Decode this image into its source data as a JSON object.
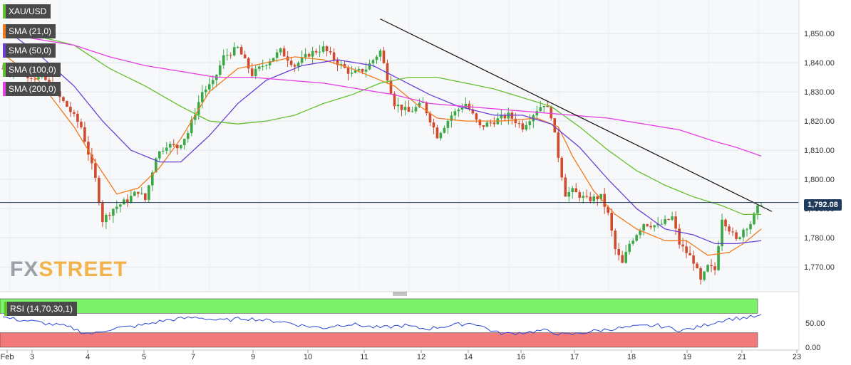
{
  "symbol": "XAU/USD",
  "current_price_label": "1,792.08",
  "watermark": {
    "part1": "FX",
    "part2": "STREET"
  },
  "legend": [
    {
      "label": "SMA (21,0)",
      "color": "#f07a1d"
    },
    {
      "label": "SMA (50,0)",
      "color": "#6b3fd6"
    },
    {
      "label": "SMA (100,0)",
      "color": "#63c02f"
    },
    {
      "label": "SMA (200,0)",
      "color": "#e63fe6"
    }
  ],
  "rsi_label": "RSI (14,70,30,1)",
  "chart_data": {
    "type": "candlestick",
    "price_axis": {
      "ticks": [
        1850,
        1840,
        1830,
        1820,
        1810,
        1800,
        1790,
        1780,
        1770
      ],
      "tick_labels": [
        "1,850.00",
        "1,840.00",
        "1,830.00",
        "1,820.00",
        "1,810.00",
        "1,800.00",
        "1,790.00",
        "1,780.00",
        "1,770.00"
      ],
      "ylim": [
        1762,
        1861
      ]
    },
    "rsi_axis": {
      "ticks": [
        50,
        0
      ],
      "tick_labels": [
        "50.00",
        "0.00"
      ],
      "overbought": 70,
      "oversold": 30
    },
    "x_labels": [
      "Feb",
      "3",
      "4",
      "5",
      "7",
      "9",
      "10",
      "11",
      "12",
      "14",
      "16",
      "17",
      "18",
      "19",
      "21",
      "23"
    ],
    "price_path": [
      [
        0,
        1838
      ],
      [
        6,
        1836
      ],
      [
        12,
        1834
      ],
      [
        18,
        1825
      ],
      [
        22,
        1818
      ],
      [
        26,
        1800
      ],
      [
        28,
        1786
      ],
      [
        31,
        1790
      ],
      [
        35,
        1793
      ],
      [
        38,
        1796
      ],
      [
        40,
        1793
      ],
      [
        43,
        1808
      ],
      [
        46,
        1812
      ],
      [
        49,
        1811
      ],
      [
        52,
        1816
      ],
      [
        56,
        1830
      ],
      [
        59,
        1833
      ],
      [
        62,
        1842
      ],
      [
        66,
        1845
      ],
      [
        70,
        1836
      ],
      [
        74,
        1840
      ],
      [
        78,
        1844
      ],
      [
        82,
        1839
      ],
      [
        86,
        1843
      ],
      [
        90,
        1845
      ],
      [
        94,
        1840
      ],
      [
        98,
        1836
      ],
      [
        102,
        1838
      ],
      [
        106,
        1844
      ],
      [
        110,
        1826
      ],
      [
        114,
        1823
      ],
      [
        118,
        1826
      ],
      [
        122,
        1815
      ],
      [
        126,
        1822
      ],
      [
        130,
        1826
      ],
      [
        134,
        1818
      ],
      [
        138,
        1820
      ],
      [
        142,
        1822
      ],
      [
        146,
        1818
      ],
      [
        150,
        1824
      ],
      [
        152,
        1826
      ],
      [
        154,
        1822
      ],
      [
        156,
        1808
      ],
      [
        158,
        1795
      ],
      [
        160,
        1796
      ],
      [
        164,
        1793
      ],
      [
        168,
        1794
      ],
      [
        170,
        1788
      ],
      [
        172,
        1776
      ],
      [
        174,
        1771
      ],
      [
        176,
        1778
      ],
      [
        180,
        1785
      ],
      [
        184,
        1784
      ],
      [
        188,
        1787
      ],
      [
        190,
        1778
      ],
      [
        192,
        1775
      ],
      [
        194,
        1772
      ],
      [
        196,
        1765
      ],
      [
        198,
        1770
      ],
      [
        200,
        1769
      ],
      [
        202,
        1787
      ],
      [
        204,
        1783
      ],
      [
        206,
        1779
      ],
      [
        208,
        1783
      ],
      [
        210,
        1785
      ],
      [
        212,
        1790
      ],
      [
        213,
        1792.08
      ]
    ],
    "series": [
      {
        "name": "SMA (21,0)",
        "color": "#f07a1d",
        "points": [
          [
            0,
            1843
          ],
          [
            10,
            1834
          ],
          [
            20,
            1818
          ],
          [
            26,
            1806
          ],
          [
            32,
            1795
          ],
          [
            38,
            1797
          ],
          [
            44,
            1804
          ],
          [
            50,
            1814
          ],
          [
            58,
            1830
          ],
          [
            66,
            1838
          ],
          [
            74,
            1840
          ],
          [
            82,
            1842
          ],
          [
            90,
            1841
          ],
          [
            98,
            1838
          ],
          [
            104,
            1835
          ],
          [
            110,
            1832
          ],
          [
            116,
            1826
          ],
          [
            122,
            1821
          ],
          [
            130,
            1820
          ],
          [
            140,
            1820
          ],
          [
            150,
            1821
          ],
          [
            156,
            1818
          ],
          [
            160,
            1808
          ],
          [
            166,
            1796
          ],
          [
            172,
            1788
          ],
          [
            178,
            1783
          ],
          [
            186,
            1779
          ],
          [
            192,
            1779
          ],
          [
            198,
            1774
          ],
          [
            204,
            1775
          ],
          [
            208,
            1778
          ],
          [
            213,
            1783
          ]
        ]
      },
      {
        "name": "SMA (50,0)",
        "color": "#6b3fd6",
        "points": [
          [
            0,
            1852
          ],
          [
            10,
            1843
          ],
          [
            20,
            1832
          ],
          [
            28,
            1820
          ],
          [
            36,
            1810
          ],
          [
            44,
            1806
          ],
          [
            50,
            1806
          ],
          [
            58,
            1815
          ],
          [
            66,
            1826
          ],
          [
            74,
            1834
          ],
          [
            84,
            1839
          ],
          [
            94,
            1841
          ],
          [
            104,
            1839
          ],
          [
            112,
            1834
          ],
          [
            120,
            1829
          ],
          [
            128,
            1825
          ],
          [
            138,
            1822
          ],
          [
            146,
            1822
          ],
          [
            154,
            1819
          ],
          [
            162,
            1811
          ],
          [
            170,
            1800
          ],
          [
            178,
            1790
          ],
          [
            186,
            1783
          ],
          [
            194,
            1781
          ],
          [
            200,
            1778
          ],
          [
            206,
            1778
          ],
          [
            213,
            1779
          ]
        ]
      },
      {
        "name": "SMA (100,0)",
        "color": "#63c02f",
        "points": [
          [
            0,
            1852
          ],
          [
            10,
            1849
          ],
          [
            20,
            1846
          ],
          [
            30,
            1838
          ],
          [
            40,
            1832
          ],
          [
            50,
            1825
          ],
          [
            58,
            1820
          ],
          [
            66,
            1819
          ],
          [
            74,
            1820
          ],
          [
            82,
            1822
          ],
          [
            90,
            1826
          ],
          [
            98,
            1829
          ],
          [
            106,
            1833
          ],
          [
            114,
            1835
          ],
          [
            122,
            1835
          ],
          [
            130,
            1833
          ],
          [
            138,
            1831
          ],
          [
            146,
            1828
          ],
          [
            154,
            1825
          ],
          [
            162,
            1818
          ],
          [
            170,
            1810
          ],
          [
            178,
            1803
          ],
          [
            186,
            1798
          ],
          [
            194,
            1794
          ],
          [
            202,
            1791
          ],
          [
            208,
            1788
          ],
          [
            213,
            1788
          ]
        ]
      },
      {
        "name": "SMA (200,0)",
        "color": "#e63fe6",
        "points": [
          [
            0,
            1850
          ],
          [
            10,
            1848
          ],
          [
            20,
            1846
          ],
          [
            30,
            1842
          ],
          [
            40,
            1839
          ],
          [
            50,
            1837
          ],
          [
            60,
            1835
          ],
          [
            70,
            1835
          ],
          [
            80,
            1834
          ],
          [
            90,
            1833
          ],
          [
            100,
            1831
          ],
          [
            110,
            1829
          ],
          [
            120,
            1826
          ],
          [
            130,
            1825
          ],
          [
            140,
            1824
          ],
          [
            150,
            1823
          ],
          [
            160,
            1822
          ],
          [
            170,
            1821
          ],
          [
            180,
            1819
          ],
          [
            190,
            1817
          ],
          [
            200,
            1813
          ],
          [
            206,
            1811
          ],
          [
            213,
            1808
          ]
        ]
      }
    ],
    "trendline": {
      "from": [
        106,
        1855
      ],
      "to": [
        216,
        1789
      ]
    },
    "rsi_values": [
      62,
      58,
      55,
      52,
      48,
      45,
      40,
      30,
      28,
      36,
      40,
      42,
      45,
      50,
      55,
      58,
      60,
      62,
      58,
      55,
      57,
      60,
      58,
      55,
      54,
      50,
      45,
      42,
      40,
      45,
      48,
      46,
      42,
      40,
      43,
      45,
      40,
      38,
      42,
      45,
      48,
      50,
      40,
      30,
      28,
      30,
      32,
      35,
      30,
      25,
      28,
      32,
      35,
      38,
      40,
      42,
      44,
      45,
      40,
      35,
      38,
      45,
      52,
      58,
      60,
      62,
      64
    ]
  }
}
